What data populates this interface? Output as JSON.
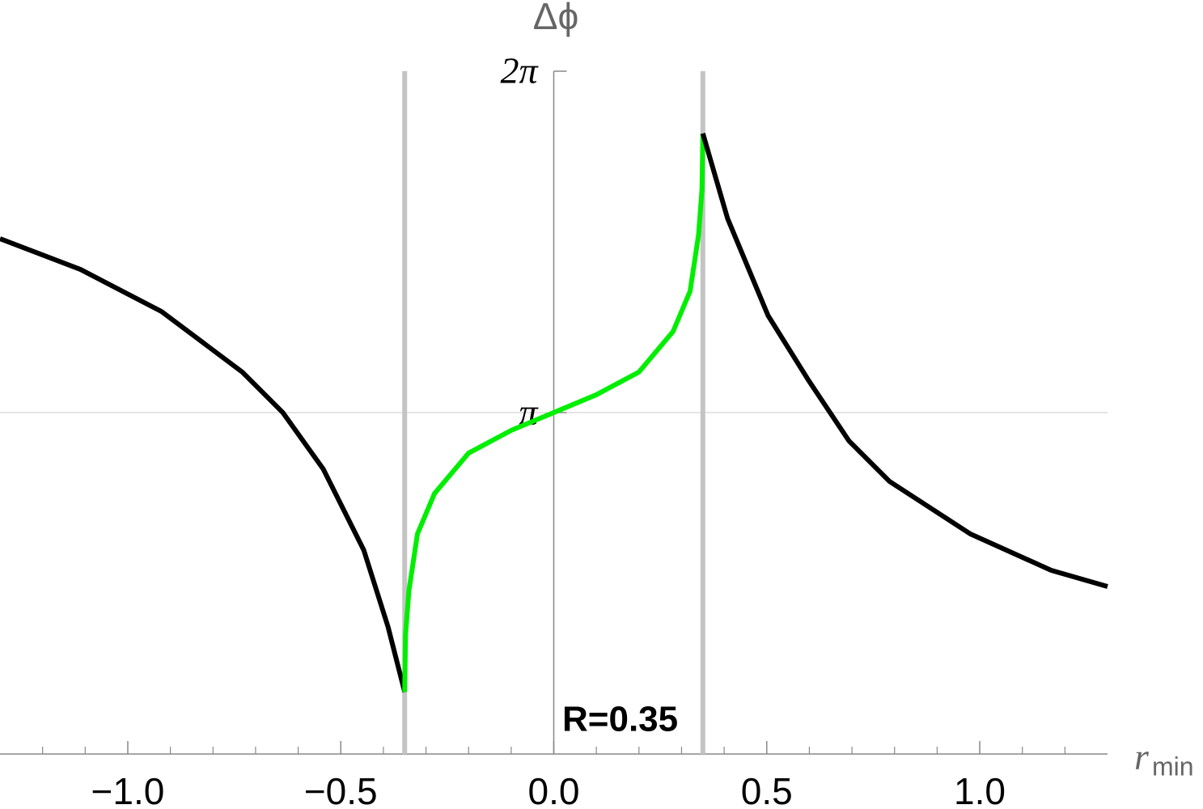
{
  "chart_data": {
    "type": "line",
    "ylabel": "Δϕ",
    "xlabel": "r",
    "xlabel_sub": "min",
    "annotation": "R=0.35",
    "xlim": [
      -1.3,
      1.3
    ],
    "ylim": [
      0,
      6.2832
    ],
    "xticks": [
      {
        "value": -1.0,
        "label": "−1.0"
      },
      {
        "value": -0.5,
        "label": "−0.5"
      },
      {
        "value": 0.0,
        "label": "0.0"
      },
      {
        "value": 0.5,
        "label": "0.5"
      },
      {
        "value": 1.0,
        "label": "1.0"
      }
    ],
    "xminorticks": [
      -1.2,
      -1.1,
      -0.9,
      -0.8,
      -0.7,
      -0.6,
      -0.4,
      -0.3,
      -0.2,
      -0.1,
      0.1,
      0.2,
      0.3,
      0.4,
      0.6,
      0.7,
      0.8,
      0.9,
      1.1,
      1.2
    ],
    "yticks": [
      {
        "value": 3.1416,
        "label": "π"
      },
      {
        "value": 6.2832,
        "label": "2π"
      }
    ],
    "hlines": [
      3.1416
    ],
    "vlines": [
      -0.35,
      0.35
    ],
    "vline_color": "#c4c4c4",
    "series": [
      {
        "color": "#000000",
        "x": [
          -1.3,
          -1.111,
          -0.921,
          -0.731,
          -0.636,
          -0.541,
          -0.446,
          -0.389,
          -0.35
        ],
        "values": [
          4.742,
          4.459,
          4.072,
          3.514,
          3.142,
          2.621,
          1.876,
          1.169,
          0.57
        ]
      },
      {
        "color": "#00ee00",
        "x": [
          -0.35,
          -0.348,
          -0.34,
          -0.32,
          -0.28,
          -0.2,
          -0.1,
          0.0,
          0.1,
          0.2,
          0.28,
          0.32,
          0.34,
          0.348,
          0.35
        ],
        "values": [
          0.57,
          1.1,
          1.504,
          2.025,
          2.397,
          2.769,
          2.978,
          3.142,
          3.306,
          3.515,
          3.887,
          4.259,
          4.78,
          5.2,
          5.71
        ]
      },
      {
        "color": "#000000",
        "x": [
          0.35,
          0.408,
          0.503,
          0.598,
          0.693,
          0.788,
          0.978,
          1.168,
          1.3
        ],
        "values": [
          5.71,
          4.928,
          4.035,
          3.439,
          2.881,
          2.509,
          2.025,
          1.69,
          1.541
        ]
      }
    ]
  }
}
